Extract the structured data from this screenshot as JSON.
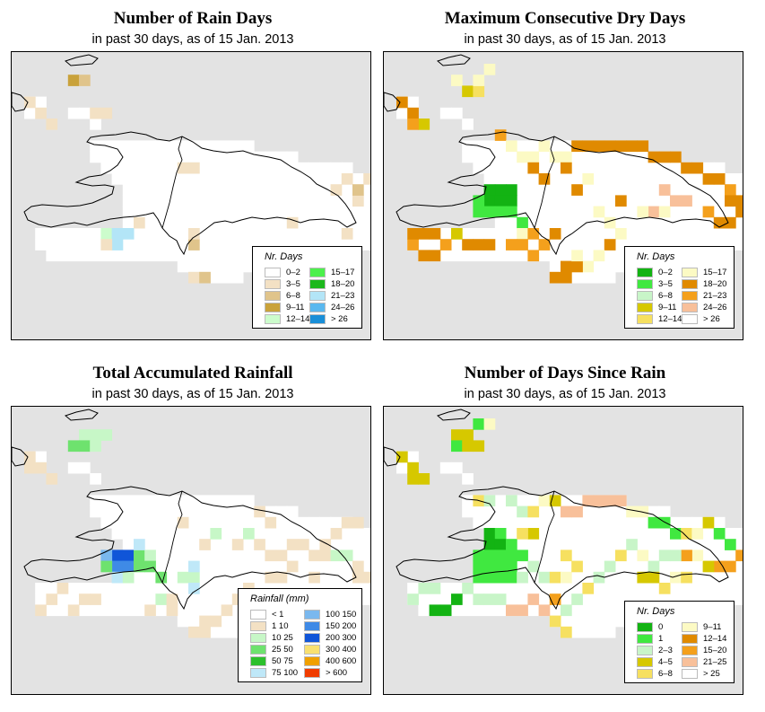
{
  "panels": [
    {
      "title": "Number of Rain Days",
      "subtitle": "in past 30 days, as of  15 Jan. 2013",
      "legend_title": "Nr. Days",
      "legend": [
        {
          "label": "0–2",
          "color": "#ffffff"
        },
        {
          "label": "3–5",
          "color": "#f3e1c4"
        },
        {
          "label": "6–8",
          "color": "#e0c48b"
        },
        {
          "label": "9–11",
          "color": "#c9a23b"
        },
        {
          "label": "12–14",
          "color": "#ccfccc"
        },
        {
          "label": "15–17",
          "color": "#4cf04c"
        },
        {
          "label": "18–20",
          "color": "#1cb81c"
        },
        {
          "label": "21–23",
          "color": "#b3e5f7"
        },
        {
          "label": "24–26",
          "color": "#5ab8ef"
        },
        {
          "label": "> 26",
          "color": "#1a8fd8"
        }
      ]
    },
    {
      "title": "Maximum Consecutive Dry Days",
      "subtitle": "in past 30 days, as of  15 Jan. 2013",
      "legend_title": "Nr. Days",
      "legend": [
        {
          "label": "0–2",
          "color": "#13b313"
        },
        {
          "label": "3–5",
          "color": "#40e840"
        },
        {
          "label": "6–8",
          "color": "#c8f5c8"
        },
        {
          "label": "9–11",
          "color": "#d6c800"
        },
        {
          "label": "12–14",
          "color": "#f6e060"
        },
        {
          "label": "15–17",
          "color": "#fcfac4"
        },
        {
          "label": "18–20",
          "color": "#e08a00"
        },
        {
          "label": "21–23",
          "color": "#f4a01c"
        },
        {
          "label": "24–26",
          "color": "#f8c09a"
        },
        {
          "label": "> 26",
          "color": "#ffffff"
        }
      ]
    },
    {
      "title": "Total Accumulated Rainfall",
      "subtitle": "in past 30 days, as of  15 Jan. 2013",
      "legend_title": "Rainfall (mm)",
      "legend": [
        {
          "label": "< 1",
          "color": "#ffffff"
        },
        {
          "label": "1   10",
          "color": "#f3e1c4"
        },
        {
          "label": "10   25",
          "color": "#c7f7c7"
        },
        {
          "label": "25   50",
          "color": "#6ee26e"
        },
        {
          "label": "50   75",
          "color": "#2cc02c"
        },
        {
          "label": "75   100",
          "color": "#bfe8f8"
        },
        {
          "label": "100   150",
          "color": "#7ab8ee"
        },
        {
          "label": "150   200",
          "color": "#3f8ae6"
        },
        {
          "label": "200   300",
          "color": "#1055d8"
        },
        {
          "label": "300   400",
          "color": "#f8e070"
        },
        {
          "label": "400   600",
          "color": "#f0a000"
        },
        {
          "label": "> 600",
          "color": "#f03c00"
        }
      ]
    },
    {
      "title": "Number of Days Since Rain",
      "subtitle": "in past 30 days, as of  15 Jan. 2013",
      "legend_title": "Nr. Days",
      "legend": [
        {
          "label": "0",
          "color": "#13b313"
        },
        {
          "label": "1",
          "color": "#40e840"
        },
        {
          "label": "2–3",
          "color": "#c8f5c8"
        },
        {
          "label": "4–5",
          "color": "#d6c800"
        },
        {
          "label": "6–8",
          "color": "#f6e060"
        },
        {
          "label": "9–11",
          "color": "#fcfac4"
        },
        {
          "label": "12–14",
          "color": "#e08a00"
        },
        {
          "label": "15–20",
          "color": "#f4a01c"
        },
        {
          "label": "21–25",
          "color": "#f8c09a"
        },
        {
          "label": "> 25",
          "color": "#ffffff"
        }
      ]
    }
  ]
}
